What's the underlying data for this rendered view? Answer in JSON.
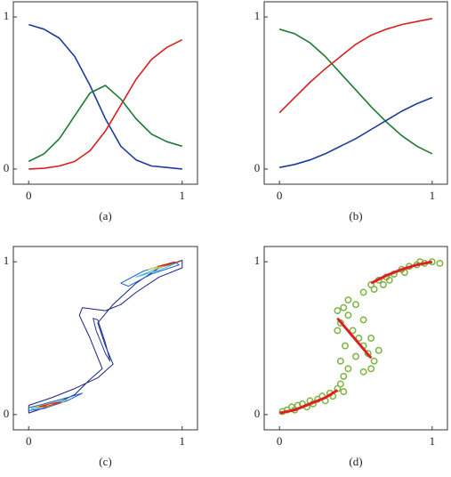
{
  "chart_data": [
    {
      "type": "line",
      "caption": "(a)",
      "xlim": [
        -0.1,
        1.1
      ],
      "ylim": [
        -0.1,
        1.1
      ],
      "xticks": [
        0,
        1
      ],
      "yticks": [
        0,
        1
      ],
      "series": [
        {
          "color": "#1f3b9b",
          "x": [
            0,
            0.1,
            0.2,
            0.3,
            0.4,
            0.5,
            0.6,
            0.7,
            0.8,
            0.9,
            1
          ],
          "values": [
            0.95,
            0.92,
            0.86,
            0.74,
            0.55,
            0.33,
            0.15,
            0.06,
            0.02,
            0.01,
            0.0
          ]
        },
        {
          "color": "#d62020",
          "x": [
            0,
            0.1,
            0.2,
            0.3,
            0.4,
            0.5,
            0.6,
            0.7,
            0.8,
            0.9,
            1
          ],
          "values": [
            0,
            0.005,
            0.02,
            0.05,
            0.12,
            0.25,
            0.42,
            0.59,
            0.72,
            0.8,
            0.85
          ]
        },
        {
          "color": "#1e7a34",
          "x": [
            0,
            0.1,
            0.2,
            0.3,
            0.4,
            0.5,
            0.6,
            0.7,
            0.8,
            0.9,
            1
          ],
          "values": [
            0.05,
            0.1,
            0.2,
            0.35,
            0.5,
            0.55,
            0.46,
            0.33,
            0.23,
            0.18,
            0.15
          ]
        }
      ]
    },
    {
      "type": "line",
      "caption": "(b)",
      "xlim": [
        -0.1,
        1.1
      ],
      "ylim": [
        -0.1,
        1.1
      ],
      "xticks": [
        0,
        1
      ],
      "yticks": [
        0,
        1
      ],
      "series": [
        {
          "color": "#1e7a34",
          "x": [
            0,
            0.1,
            0.2,
            0.3,
            0.4,
            0.5,
            0.6,
            0.7,
            0.8,
            0.9,
            1
          ],
          "values": [
            0.92,
            0.89,
            0.83,
            0.74,
            0.63,
            0.52,
            0.41,
            0.31,
            0.22,
            0.15,
            0.1
          ]
        },
        {
          "color": "#d62020",
          "x": [
            0,
            0.1,
            0.2,
            0.3,
            0.4,
            0.5,
            0.6,
            0.7,
            0.8,
            0.9,
            1
          ],
          "values": [
            0.37,
            0.47,
            0.57,
            0.66,
            0.74,
            0.82,
            0.88,
            0.92,
            0.95,
            0.97,
            0.99
          ]
        },
        {
          "color": "#1f3b9b",
          "x": [
            0,
            0.1,
            0.2,
            0.3,
            0.4,
            0.5,
            0.6,
            0.7,
            0.8,
            0.9,
            1
          ],
          "values": [
            0.01,
            0.03,
            0.06,
            0.1,
            0.15,
            0.2,
            0.26,
            0.32,
            0.38,
            0.43,
            0.47
          ]
        }
      ]
    },
    {
      "type": "contour",
      "caption": "(c)",
      "xlim": [
        -0.1,
        1.1
      ],
      "ylim": [
        -0.1,
        1.1
      ],
      "xticks": [
        0,
        1
      ],
      "yticks": [
        0,
        1
      ],
      "series": [
        {
          "color": "#1a237e",
          "x": [
            0,
            0.15,
            0.3,
            0.45,
            0.55,
            0.5,
            0.45,
            0.55,
            0.7,
            0.85,
            1,
            1,
            0.85,
            0.7,
            0.6,
            0.5,
            0.35,
            0.33,
            0.4,
            0.48,
            0.4,
            0.3,
            0.15,
            0
          ],
          "values": [
            0.06,
            0.11,
            0.17,
            0.24,
            0.33,
            0.45,
            0.6,
            0.72,
            0.86,
            0.96,
            1.01,
            0.96,
            0.9,
            0.8,
            0.72,
            0.68,
            0.7,
            0.65,
            0.5,
            0.3,
            0.23,
            0.13,
            0.06,
            0.01
          ]
        },
        {
          "color": "#1f3b9b",
          "x": [
            0.45,
            0.5,
            0.53,
            0.5,
            0.44,
            0.42
          ],
          "values": [
            0.62,
            0.47,
            0.35,
            0.4,
            0.55,
            0.63
          ]
        },
        {
          "color": "#1f5fd0",
          "x": [
            0,
            0.1,
            0.25,
            0.35,
            0.25,
            0.1,
            0
          ],
          "values": [
            0.045,
            0.07,
            0.11,
            0.14,
            0.09,
            0.04,
            0.025
          ]
        },
        {
          "color": "#1f5fd0",
          "x": [
            0.6,
            0.75,
            0.95,
            0.98,
            0.8,
            0.65
          ],
          "values": [
            0.86,
            0.94,
            1.0,
            0.98,
            0.92,
            0.84
          ]
        },
        {
          "color": "#3fb6d8",
          "x": [
            0.02,
            0.12,
            0.25,
            0.13,
            0.02
          ],
          "values": [
            0.045,
            0.07,
            0.1,
            0.055,
            0.035
          ]
        },
        {
          "color": "#3fb6d8",
          "x": [
            0.7,
            0.85,
            0.97,
            0.85
          ],
          "values": [
            0.9,
            0.96,
            0.995,
            0.945
          ]
        },
        {
          "color": "#e8c020",
          "x": [
            0.04,
            0.14,
            0.23,
            0.12
          ],
          "values": [
            0.048,
            0.072,
            0.085,
            0.052
          ]
        },
        {
          "color": "#e8c020",
          "x": [
            0.78,
            0.9,
            0.98,
            0.88
          ],
          "values": [
            0.95,
            0.985,
            1.0,
            0.97
          ]
        },
        {
          "color": "#d62020",
          "x": [
            0.07,
            0.15,
            0.21,
            0.13
          ],
          "values": [
            0.052,
            0.073,
            0.08,
            0.058
          ]
        },
        {
          "color": "#d62020",
          "x": [
            0.84,
            0.92,
            0.98,
            0.9
          ],
          "values": [
            0.97,
            0.99,
            1.0,
            0.978
          ]
        }
      ]
    },
    {
      "type": "scatter",
      "caption": "(d)",
      "xlim": [
        -0.1,
        1.1
      ],
      "ylim": [
        -0.1,
        1.1
      ],
      "xticks": [
        0,
        1
      ],
      "yticks": [
        0,
        1
      ],
      "series": [
        {
          "mode": "markers",
          "color": "#7cb342",
          "x": [
            0.02,
            0.05,
            0.08,
            0.1,
            0.12,
            0.15,
            0.18,
            0.2,
            0.22,
            0.25,
            0.28,
            0.3,
            0.33,
            0.35,
            0.38,
            0.4,
            0.42,
            0.42,
            0.45,
            0.4,
            0.43,
            0.38,
            0.4,
            0.42,
            0.45,
            0.5,
            0.48,
            0.52,
            0.55,
            0.58,
            0.6,
            0.62,
            0.55,
            0.5,
            0.45,
            0.55,
            0.38,
            0.6,
            0.65,
            0.55,
            0.6,
            0.65,
            0.7,
            0.75,
            0.8,
            0.85,
            0.9,
            0.95,
            1.0,
            1.05,
            0.72,
            0.82,
            0.92,
            0.68,
            0.62
          ],
          "values": [
            0.02,
            0.03,
            0.05,
            0.03,
            0.06,
            0.07,
            0.05,
            0.09,
            0.07,
            0.1,
            0.12,
            0.09,
            0.14,
            0.12,
            0.17,
            0.2,
            0.15,
            0.25,
            0.3,
            0.35,
            0.45,
            0.55,
            0.6,
            0.7,
            0.65,
            0.72,
            0.55,
            0.5,
            0.45,
            0.4,
            0.3,
            0.35,
            0.28,
            0.38,
            0.75,
            0.62,
            0.68,
            0.5,
            0.42,
            0.8,
            0.85,
            0.88,
            0.9,
            0.92,
            0.95,
            0.97,
            0.98,
            0.99,
            1.0,
            0.99,
            0.88,
            0.93,
            1.0,
            0.85,
            0.82
          ]
        },
        {
          "mode": "lines",
          "color": "#e02020",
          "x": [
            0,
            0.1,
            0.2,
            0.3,
            0.38
          ],
          "values": [
            0.01,
            0.03,
            0.07,
            0.11,
            0.16
          ]
        },
        {
          "mode": "lines",
          "color": "#e02020",
          "x": [
            0.38,
            0.6
          ],
          "values": [
            0.63,
            0.37
          ]
        },
        {
          "mode": "lines",
          "color": "#e02020",
          "x": [
            0.6,
            0.7,
            0.8,
            0.9,
            1
          ],
          "values": [
            0.86,
            0.91,
            0.95,
            0.98,
            1.0
          ]
        }
      ]
    }
  ]
}
